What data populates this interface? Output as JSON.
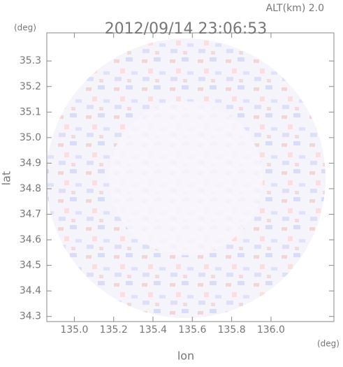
{
  "chart_data": {
    "type": "radar-map",
    "title": "2012/09/14 23:06:53",
    "altitude_label": "ALT(km) 2.0",
    "x_label": "lon",
    "x_unit": "(deg)",
    "y_label": "lat",
    "y_unit": "(deg)",
    "xlim": [
      134.86,
      136.32
    ],
    "xticks": [
      {
        "value": 135,
        "label": "135.0"
      },
      135.2,
      135.4,
      135.6,
      135.8,
      {
        "value": 136,
        "label": "136.0"
      }
    ],
    "ylim": [
      34.28,
      35.41
    ],
    "yticks": [
      34.3,
      34.4,
      34.5,
      34.6,
      34.7,
      34.8,
      34.9,
      {
        "value": 35,
        "label": "35.0"
      },
      35.1,
      35.2,
      35.3
    ]
  }
}
